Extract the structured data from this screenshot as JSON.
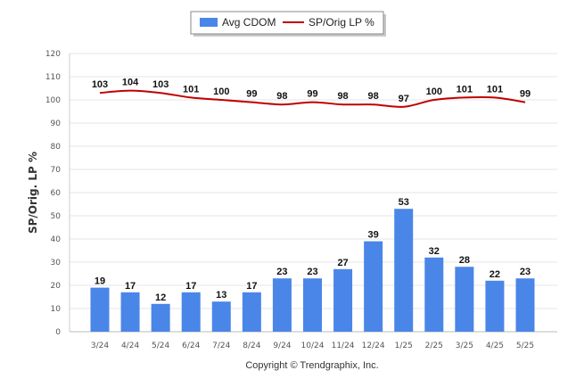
{
  "chart_data": {
    "type": "bar",
    "categories": [
      "3/24",
      "4/24",
      "5/24",
      "6/24",
      "7/24",
      "8/24",
      "9/24",
      "10/24",
      "11/24",
      "12/24",
      "1/25",
      "2/25",
      "3/25",
      "4/25",
      "5/25"
    ],
    "series": [
      {
        "name": "Avg CDOM",
        "type": "bar",
        "color": "#4a86e8",
        "values": [
          19,
          17,
          12,
          17,
          13,
          17,
          23,
          23,
          27,
          39,
          53,
          32,
          28,
          22,
          23
        ]
      },
      {
        "name": "SP/Orig LP %",
        "type": "line",
        "color": "#c00000",
        "values": [
          103,
          104,
          103,
          101,
          100,
          99,
          98,
          99,
          98,
          98,
          97,
          100,
          101,
          101,
          99
        ]
      }
    ],
    "ylabel": "SP/Orig. LP %",
    "ylim": [
      0,
      120
    ],
    "yticks": [
      0,
      10,
      20,
      30,
      40,
      50,
      60,
      70,
      80,
      90,
      100,
      110,
      120
    ],
    "grid": true,
    "legend_position": "top-center",
    "footer": "Copyright © Trendgraphix, Inc."
  }
}
